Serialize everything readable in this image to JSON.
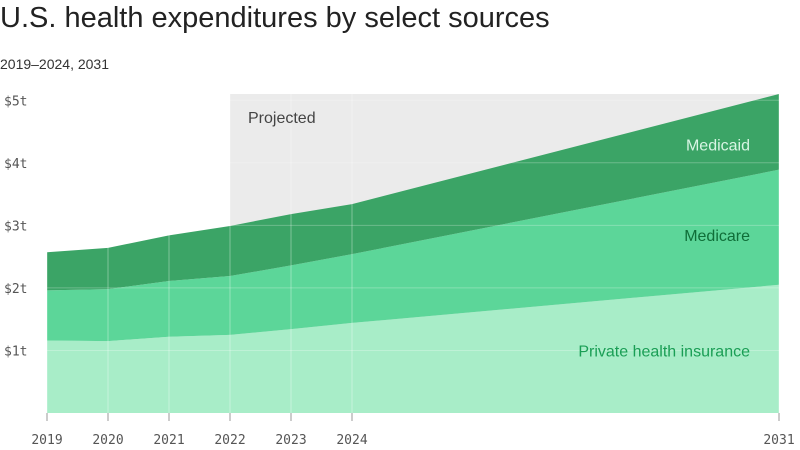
{
  "chart_data": {
    "type": "area",
    "stacked": true,
    "title": "U.S. health expenditures by select sources",
    "subtitle": "2019–2024, 2031",
    "x": [
      2019,
      2020,
      2021,
      2022,
      2023,
      2024,
      2031
    ],
    "xticks": [
      "2019",
      "2020",
      "2021",
      "2022",
      "2023",
      "2024",
      "2031"
    ],
    "yticks": [
      "$1t",
      "$2t",
      "$3t",
      "$4t",
      "$5t"
    ],
    "ylim": [
      0,
      5.1
    ],
    "projection_start": 2022,
    "projection_label": "Projected",
    "series": [
      {
        "name": "Private health insurance",
        "values": [
          1.16,
          1.15,
          1.22,
          1.25,
          1.34,
          1.44,
          2.05
        ],
        "color": "#a8edc8",
        "label_color": "#1a9e55"
      },
      {
        "name": "Medicare",
        "values": [
          0.8,
          0.83,
          0.89,
          0.94,
          1.02,
          1.1,
          1.84
        ],
        "color": "#5cd699",
        "label_color": "#0f6e38"
      },
      {
        "name": "Medicaid",
        "values": [
          0.61,
          0.66,
          0.73,
          0.8,
          0.82,
          0.8,
          1.21
        ],
        "color": "#3ba466",
        "label_color": "#d8f5e4"
      }
    ],
    "grid": true
  }
}
